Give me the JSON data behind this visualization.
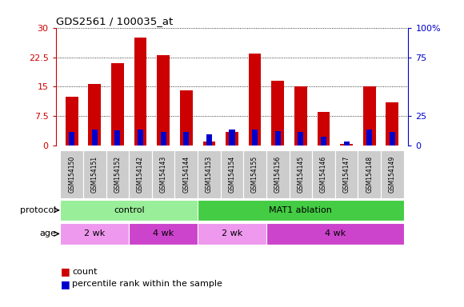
{
  "title": "GDS2561 / 100035_at",
  "samples": [
    "GSM154150",
    "GSM154151",
    "GSM154152",
    "GSM154142",
    "GSM154143",
    "GSM154144",
    "GSM154153",
    "GSM154154",
    "GSM154155",
    "GSM154156",
    "GSM154145",
    "GSM154146",
    "GSM154147",
    "GSM154148",
    "GSM154149"
  ],
  "count_values": [
    12.5,
    15.8,
    21.0,
    27.5,
    23.0,
    14.0,
    1.0,
    3.5,
    23.5,
    16.5,
    15.0,
    8.5,
    0.5,
    15.0,
    11.0
  ],
  "percentile_values": [
    12.0,
    14.0,
    13.0,
    13.5,
    11.5,
    11.5,
    10.0,
    13.5,
    13.5,
    12.5,
    11.5,
    8.0,
    3.5,
    13.5,
    11.5
  ],
  "count_color": "#cc0000",
  "percentile_color": "#0000cc",
  "ylim_left": [
    0,
    30
  ],
  "ylim_right": [
    0,
    100
  ],
  "yticks_left": [
    0,
    7.5,
    15,
    22.5,
    30
  ],
  "ytick_labels_left": [
    "0",
    "7.5",
    "15",
    "22.5",
    "30"
  ],
  "ytick_labels_right": [
    "0",
    "25",
    "75",
    "100%"
  ],
  "yticks_right": [
    0,
    25,
    75,
    100
  ],
  "protocol_groups": [
    {
      "label": "control",
      "start": 0,
      "end": 6,
      "color": "#99ee99"
    },
    {
      "label": "MAT1 ablation",
      "start": 6,
      "end": 15,
      "color": "#44cc44"
    }
  ],
  "age_groups": [
    {
      "label": "2 wk",
      "start": 0,
      "end": 3,
      "color": "#ee99ee"
    },
    {
      "label": "4 wk",
      "start": 3,
      "end": 6,
      "color": "#cc44cc"
    },
    {
      "label": "2 wk",
      "start": 6,
      "end": 9,
      "color": "#ee99ee"
    },
    {
      "label": "4 wk",
      "start": 9,
      "end": 15,
      "color": "#cc44cc"
    }
  ],
  "protocol_label": "protocol",
  "age_label": "age",
  "legend_count": "count",
  "legend_percentile": "percentile rank within the sample",
  "bar_width": 0.55,
  "plot_bg_color": "#ffffff",
  "sample_bg_color": "#cccccc",
  "dotted_grid_color": "#000000"
}
